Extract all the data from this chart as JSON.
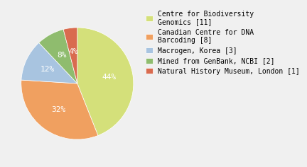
{
  "labels": [
    "Centre for Biodiversity\nGenomics [11]",
    "Canadian Centre for DNA\nBarcoding [8]",
    "Macrogen, Korea [3]",
    "Mined from GenBank, NCBI [2]",
    "Natural History Museum, London [1]"
  ],
  "values": [
    44,
    32,
    12,
    8,
    4
  ],
  "colors": [
    "#d4e07a",
    "#f0a060",
    "#a8c4e0",
    "#8fbc6e",
    "#d96b4f"
  ],
  "pct_labels": [
    "44%",
    "32%",
    "12%",
    "8%",
    "4%"
  ],
  "startangle": 90,
  "background_color": "#f0f0f0",
  "text_color": "#ffffff",
  "legend_fontsize": 7,
  "pct_fontsize": 8
}
